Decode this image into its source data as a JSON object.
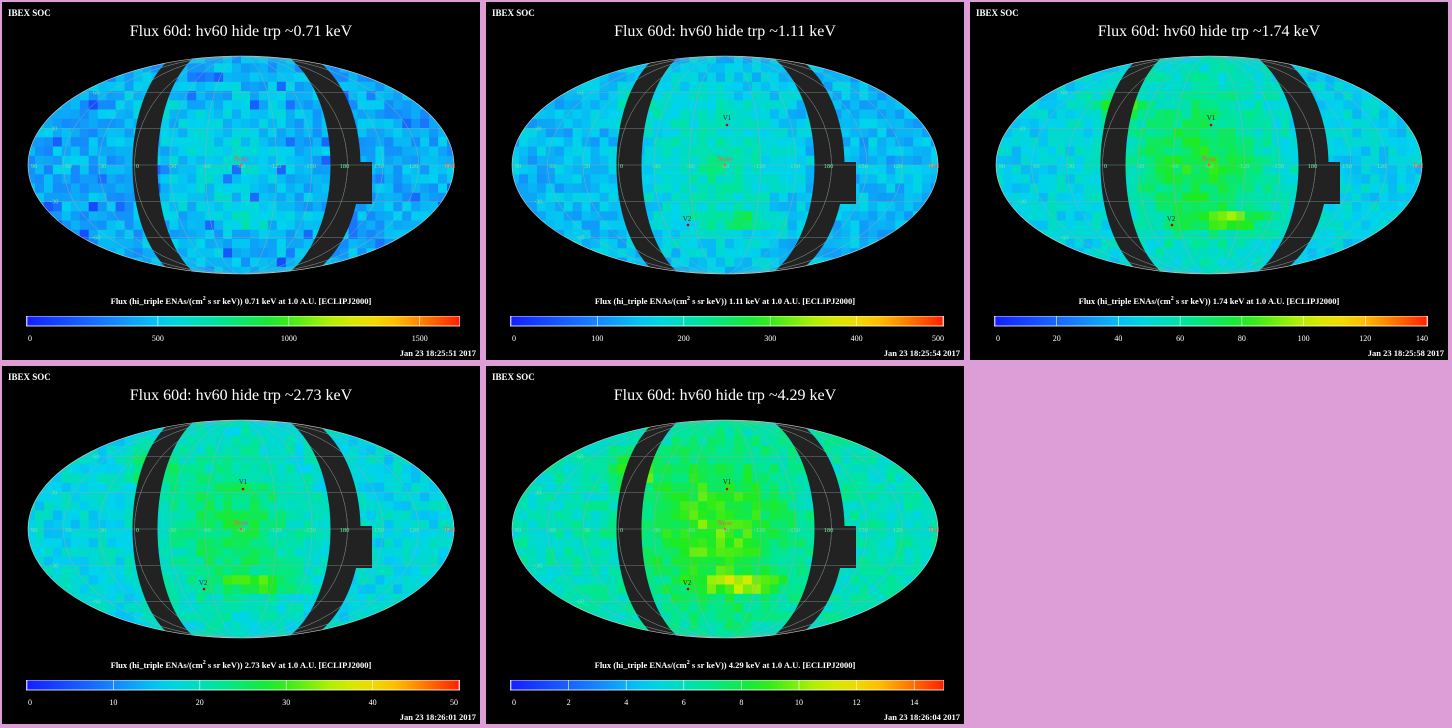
{
  "background_color": "#dd9ed8",
  "panels": [
    {
      "soc_label": "IBEX SOC",
      "title": "Flux   60d: hv60 hide trp ~0.71 keV",
      "caption_prefix": "Flux (hi_triple ENAs/(cm",
      "caption_sup": "2",
      "caption_suffix": " s sr keV))  0.71 keV at 1.0 A.U. [ECLIPJ2000]",
      "timestamp": "Jan 23 18:25:51 2017",
      "colorbar_ticks": [
        "0",
        "500",
        "1000",
        "1500"
      ],
      "colorbar_tick_values": [
        0,
        500,
        1000,
        1500
      ],
      "colorbar_max": 1650,
      "base_level": 0.26,
      "bright_level": 0.34,
      "show_v_markers": false
    },
    {
      "soc_label": "IBEX SOC",
      "title": "Flux   60d: hv60 hide trp ~1.11 keV",
      "caption_prefix": "Flux (hi_triple ENAs/(cm",
      "caption_sup": "2",
      "caption_suffix": " s sr keV))  1.11 keV at 1.0 A.U. [ECLIPJ2000]",
      "timestamp": "Jan 23 18:25:54 2017",
      "colorbar_ticks": [
        "0",
        "100",
        "200",
        "300",
        "400",
        "500"
      ],
      "colorbar_tick_values": [
        0,
        100,
        200,
        300,
        400,
        500
      ],
      "colorbar_max": 500,
      "base_level": 0.28,
      "bright_level": 0.42,
      "show_v_markers": true
    },
    {
      "soc_label": "IBEX SOC",
      "title": "Flux   60d: hv60 hide trp ~1.74 keV",
      "caption_prefix": "Flux (hi_triple ENAs/(cm",
      "caption_sup": "2",
      "caption_suffix": " s sr keV))  1.74 keV at 1.0 A.U. [ECLIPJ2000]",
      "timestamp": "Jan 23 18:25:58 2017",
      "colorbar_ticks": [
        "0",
        "20",
        "40",
        "60",
        "80",
        "100",
        "120",
        "140"
      ],
      "colorbar_tick_values": [
        0,
        20,
        40,
        60,
        80,
        100,
        120,
        140
      ],
      "colorbar_max": 140,
      "base_level": 0.33,
      "bright_level": 0.55,
      "show_v_markers": true
    },
    {
      "soc_label": "IBEX SOC",
      "title": "Flux   60d: hv60 hide trp ~2.73 keV",
      "caption_prefix": "Flux (hi_triple ENAs/(cm",
      "caption_sup": "2",
      "caption_suffix": " s sr keV))  2.73 keV at 1.0 A.U. [ECLIPJ2000]",
      "timestamp": "Jan 23 18:26:01 2017",
      "colorbar_ticks": [
        "0",
        "10",
        "20",
        "30",
        "40",
        "50"
      ],
      "colorbar_tick_values": [
        0,
        10,
        20,
        30,
        40,
        50
      ],
      "colorbar_max": 50,
      "base_level": 0.34,
      "bright_level": 0.52,
      "show_v_markers": true
    },
    {
      "soc_label": "IBEX SOC",
      "title": "Flux   60d: hv60 hide trp ~4.29 keV",
      "caption_prefix": "Flux (hi_triple ENAs/(cm",
      "caption_sup": "2",
      "caption_suffix": " s sr keV))  4.29 keV at 1.0 A.U. [ECLIPJ2000]",
      "timestamp": "Jan 23 18:26:04 2017",
      "colorbar_ticks": [
        "0",
        "2",
        "4",
        "6",
        "8",
        "10",
        "12",
        "14"
      ],
      "colorbar_tick_values": [
        0,
        2,
        4,
        6,
        8,
        10,
        12,
        14
      ],
      "colorbar_max": 15,
      "base_level": 0.4,
      "bright_level": 0.62,
      "show_v_markers": true
    }
  ],
  "map_labels": {
    "voyager1": "V1",
    "voyager2": "V2",
    "nose": "Nose",
    "tail": "Tail",
    "longitudes": [
      "90",
      "60",
      "30",
      "0",
      "-30",
      "-60",
      "-90",
      "-120",
      "-150",
      "180",
      "150",
      "120",
      "90"
    ],
    "latitudes": [
      "60",
      "30",
      "-30",
      "-60"
    ]
  }
}
